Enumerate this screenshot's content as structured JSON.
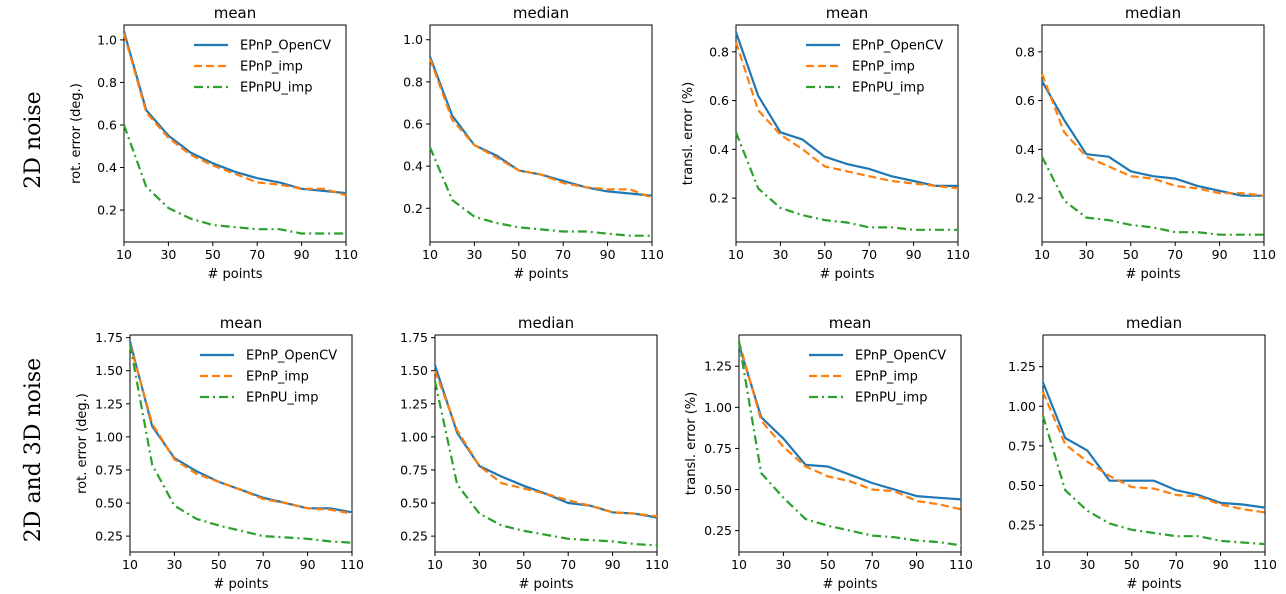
{
  "row_labels": [
    "2D noise",
    "2D and 3D noise"
  ],
  "chart_data": [
    {
      "type": "line",
      "title": "mean",
      "xlabel": "# points",
      "ylabel": "rot. error (deg.)",
      "xlim": [
        10,
        110
      ],
      "ylim": [
        0.05,
        1.07
      ],
      "xticks": [
        10,
        30,
        50,
        70,
        90,
        110
      ],
      "yticks": [
        0.2,
        0.4,
        0.6,
        0.8,
        1.0
      ],
      "ytick_labels": [
        "0.2",
        "0.4",
        "0.6",
        "0.8",
        "1.0"
      ],
      "legend": "top-right",
      "x": [
        10,
        20,
        30,
        40,
        50,
        60,
        70,
        80,
        90,
        100,
        110
      ],
      "series": [
        {
          "name": "EPnP_OpenCV",
          "color": "#1f77b4",
          "dash": "solid",
          "values": [
            1.04,
            0.67,
            0.55,
            0.47,
            0.42,
            0.38,
            0.35,
            0.33,
            0.3,
            0.29,
            0.28
          ]
        },
        {
          "name": "EPnP_imp",
          "color": "#ff7f0e",
          "dash": "dashed",
          "values": [
            1.03,
            0.66,
            0.54,
            0.46,
            0.41,
            0.37,
            0.33,
            0.32,
            0.3,
            0.3,
            0.27
          ]
        },
        {
          "name": "EPnPU_imp",
          "color": "#2ca02c",
          "dash": "dashdot",
          "values": [
            0.6,
            0.31,
            0.21,
            0.16,
            0.13,
            0.12,
            0.11,
            0.11,
            0.09,
            0.09,
            0.09
          ]
        }
      ]
    },
    {
      "type": "line",
      "title": "median",
      "xlabel": "# points",
      "ylabel": "",
      "xlim": [
        10,
        110
      ],
      "ylim": [
        0.04,
        1.07
      ],
      "xticks": [
        10,
        30,
        50,
        70,
        90,
        110
      ],
      "yticks": [
        0.2,
        0.4,
        0.6,
        0.8,
        1.0
      ],
      "ytick_labels": [
        "0.2",
        "0.4",
        "0.6",
        "0.8",
        "1.0"
      ],
      "legend": "none",
      "x": [
        10,
        20,
        30,
        40,
        50,
        60,
        70,
        80,
        90,
        100,
        110
      ],
      "series": [
        {
          "name": "EPnP_OpenCV",
          "color": "#1f77b4",
          "dash": "solid",
          "values": [
            0.92,
            0.64,
            0.5,
            0.45,
            0.38,
            0.36,
            0.33,
            0.3,
            0.28,
            0.27,
            0.26
          ]
        },
        {
          "name": "EPnP_imp",
          "color": "#ff7f0e",
          "dash": "dashed",
          "values": [
            0.91,
            0.62,
            0.5,
            0.44,
            0.38,
            0.36,
            0.32,
            0.3,
            0.29,
            0.29,
            0.25
          ]
        },
        {
          "name": "EPnPU_imp",
          "color": "#2ca02c",
          "dash": "dashdot",
          "values": [
            0.49,
            0.24,
            0.16,
            0.13,
            0.11,
            0.1,
            0.09,
            0.09,
            0.08,
            0.07,
            0.07
          ]
        }
      ]
    },
    {
      "type": "line",
      "title": "mean",
      "xlabel": "# points",
      "ylabel": "transl. error (%)",
      "xlim": [
        10,
        110
      ],
      "ylim": [
        0.02,
        0.91
      ],
      "xticks": [
        10,
        30,
        50,
        70,
        90,
        110
      ],
      "yticks": [
        0.2,
        0.4,
        0.6,
        0.8
      ],
      "ytick_labels": [
        "0.2",
        "0.4",
        "0.6",
        "0.8"
      ],
      "legend": "top-right",
      "x": [
        10,
        20,
        30,
        40,
        50,
        60,
        70,
        80,
        90,
        100,
        110
      ],
      "series": [
        {
          "name": "EPnP_OpenCV",
          "color": "#1f77b4",
          "dash": "solid",
          "values": [
            0.88,
            0.62,
            0.47,
            0.44,
            0.37,
            0.34,
            0.32,
            0.29,
            0.27,
            0.25,
            0.25
          ]
        },
        {
          "name": "EPnP_imp",
          "color": "#ff7f0e",
          "dash": "dashed",
          "values": [
            0.84,
            0.56,
            0.46,
            0.4,
            0.33,
            0.31,
            0.29,
            0.27,
            0.26,
            0.25,
            0.24
          ]
        },
        {
          "name": "EPnPU_imp",
          "color": "#2ca02c",
          "dash": "dashdot",
          "values": [
            0.47,
            0.24,
            0.16,
            0.13,
            0.11,
            0.1,
            0.08,
            0.08,
            0.07,
            0.07,
            0.07
          ]
        }
      ]
    },
    {
      "type": "line",
      "title": "median",
      "xlabel": "# points",
      "ylabel": "",
      "xlim": [
        10,
        110
      ],
      "ylim": [
        0.02,
        0.91
      ],
      "xticks": [
        10,
        30,
        50,
        70,
        90,
        110
      ],
      "yticks": [
        0.2,
        0.4,
        0.6,
        0.8
      ],
      "ytick_labels": [
        "0.2",
        "0.4",
        "0.6",
        "0.8"
      ],
      "legend": "none",
      "x": [
        10,
        20,
        30,
        40,
        50,
        60,
        70,
        80,
        90,
        100,
        110
      ],
      "series": [
        {
          "name": "EPnP_OpenCV",
          "color": "#1f77b4",
          "dash": "solid",
          "values": [
            0.68,
            0.52,
            0.38,
            0.37,
            0.31,
            0.29,
            0.28,
            0.25,
            0.23,
            0.21,
            0.21
          ]
        },
        {
          "name": "EPnP_imp",
          "color": "#ff7f0e",
          "dash": "dashed",
          "values": [
            0.71,
            0.47,
            0.37,
            0.33,
            0.29,
            0.28,
            0.25,
            0.24,
            0.22,
            0.22,
            0.21
          ]
        },
        {
          "name": "EPnPU_imp",
          "color": "#2ca02c",
          "dash": "dashdot",
          "values": [
            0.37,
            0.19,
            0.12,
            0.11,
            0.09,
            0.08,
            0.06,
            0.06,
            0.05,
            0.05,
            0.05
          ]
        }
      ]
    },
    {
      "type": "line",
      "title": "mean",
      "xlabel": "# points",
      "ylabel": "rot. error (deg.)",
      "xlim": [
        10,
        110
      ],
      "ylim": [
        0.13,
        1.77
      ],
      "xticks": [
        10,
        30,
        50,
        70,
        90,
        110
      ],
      "yticks": [
        0.25,
        0.5,
        0.75,
        1.0,
        1.25,
        1.5,
        1.75
      ],
      "ytick_labels": [
        "0.25",
        "0.50",
        "0.75",
        "1.00",
        "1.25",
        "1.50",
        "1.75"
      ],
      "legend": "top-right",
      "x": [
        10,
        20,
        30,
        40,
        50,
        60,
        70,
        80,
        90,
        100,
        110
      ],
      "series": [
        {
          "name": "EPnP_OpenCV",
          "color": "#1f77b4",
          "dash": "solid",
          "values": [
            1.72,
            1.08,
            0.84,
            0.74,
            0.66,
            0.6,
            0.54,
            0.5,
            0.46,
            0.46,
            0.43
          ]
        },
        {
          "name": "EPnP_imp",
          "color": "#ff7f0e",
          "dash": "dashed",
          "values": [
            1.7,
            1.1,
            0.83,
            0.72,
            0.66,
            0.6,
            0.53,
            0.5,
            0.46,
            0.45,
            0.42
          ]
        },
        {
          "name": "EPnPU_imp",
          "color": "#2ca02c",
          "dash": "dashdot",
          "values": [
            1.7,
            0.79,
            0.48,
            0.38,
            0.33,
            0.29,
            0.25,
            0.24,
            0.23,
            0.21,
            0.2
          ]
        }
      ]
    },
    {
      "type": "line",
      "title": "median",
      "xlabel": "# points",
      "ylabel": "",
      "xlim": [
        10,
        110
      ],
      "ylim": [
        0.13,
        1.77
      ],
      "xticks": [
        10,
        30,
        50,
        70,
        90,
        110
      ],
      "yticks": [
        0.25,
        0.5,
        0.75,
        1.0,
        1.25,
        1.5,
        1.75
      ],
      "ytick_labels": [
        "0.25",
        "0.50",
        "0.75",
        "1.00",
        "1.25",
        "1.50",
        "1.75"
      ],
      "legend": "none",
      "x": [
        10,
        20,
        30,
        40,
        50,
        60,
        70,
        80,
        90,
        100,
        110
      ],
      "series": [
        {
          "name": "EPnP_OpenCV",
          "color": "#1f77b4",
          "dash": "solid",
          "values": [
            1.54,
            1.03,
            0.78,
            0.7,
            0.63,
            0.57,
            0.5,
            0.48,
            0.43,
            0.42,
            0.39
          ]
        },
        {
          "name": "EPnP_imp",
          "color": "#ff7f0e",
          "dash": "dashed",
          "values": [
            1.5,
            1.05,
            0.78,
            0.65,
            0.61,
            0.57,
            0.52,
            0.48,
            0.43,
            0.42,
            0.4
          ]
        },
        {
          "name": "EPnPU_imp",
          "color": "#2ca02c",
          "dash": "dashdot",
          "values": [
            1.42,
            0.64,
            0.42,
            0.33,
            0.29,
            0.26,
            0.23,
            0.22,
            0.21,
            0.19,
            0.18
          ]
        }
      ]
    },
    {
      "type": "line",
      "title": "mean",
      "xlabel": "# points",
      "ylabel": "transl. error (%)",
      "xlim": [
        10,
        110
      ],
      "ylim": [
        0.12,
        1.44
      ],
      "xticks": [
        10,
        30,
        50,
        70,
        90,
        110
      ],
      "yticks": [
        0.25,
        0.5,
        0.75,
        1.0,
        1.25
      ],
      "ytick_labels": [
        "0.25",
        "0.50",
        "0.75",
        "1.00",
        "1.25"
      ],
      "legend": "top-right",
      "x": [
        10,
        20,
        30,
        40,
        50,
        60,
        70,
        80,
        90,
        100,
        110
      ],
      "series": [
        {
          "name": "EPnP_OpenCV",
          "color": "#1f77b4",
          "dash": "solid",
          "values": [
            1.38,
            0.94,
            0.81,
            0.65,
            0.64,
            0.59,
            0.54,
            0.5,
            0.46,
            0.45,
            0.44
          ]
        },
        {
          "name": "EPnP_imp",
          "color": "#ff7f0e",
          "dash": "dashed",
          "values": [
            1.4,
            0.92,
            0.76,
            0.64,
            0.58,
            0.55,
            0.5,
            0.49,
            0.43,
            0.41,
            0.38
          ]
        },
        {
          "name": "EPnPU_imp",
          "color": "#2ca02c",
          "dash": "dashdot",
          "values": [
            1.4,
            0.6,
            0.45,
            0.32,
            0.28,
            0.25,
            0.22,
            0.21,
            0.19,
            0.18,
            0.16
          ]
        }
      ]
    },
    {
      "type": "line",
      "title": "median",
      "xlabel": "# points",
      "ylabel": "",
      "xlim": [
        10,
        110
      ],
      "ylim": [
        0.08,
        1.45
      ],
      "xticks": [
        10,
        30,
        50,
        70,
        90,
        110
      ],
      "yticks": [
        0.25,
        0.5,
        0.75,
        1.0,
        1.25
      ],
      "ytick_labels": [
        "0.25",
        "0.50",
        "0.75",
        "1.00",
        "1.25"
      ],
      "legend": "none",
      "x": [
        10,
        20,
        30,
        40,
        50,
        60,
        70,
        80,
        90,
        100,
        110
      ],
      "series": [
        {
          "name": "EPnP_OpenCV",
          "color": "#1f77b4",
          "dash": "solid",
          "values": [
            1.15,
            0.8,
            0.72,
            0.53,
            0.53,
            0.53,
            0.47,
            0.44,
            0.39,
            0.38,
            0.36
          ]
        },
        {
          "name": "EPnP_imp",
          "color": "#ff7f0e",
          "dash": "dashed",
          "values": [
            1.09,
            0.76,
            0.65,
            0.56,
            0.49,
            0.48,
            0.44,
            0.43,
            0.38,
            0.35,
            0.33
          ]
        },
        {
          "name": "EPnPU_imp",
          "color": "#2ca02c",
          "dash": "dashdot",
          "values": [
            0.94,
            0.47,
            0.34,
            0.26,
            0.22,
            0.2,
            0.18,
            0.18,
            0.15,
            0.14,
            0.13
          ]
        }
      ]
    }
  ]
}
